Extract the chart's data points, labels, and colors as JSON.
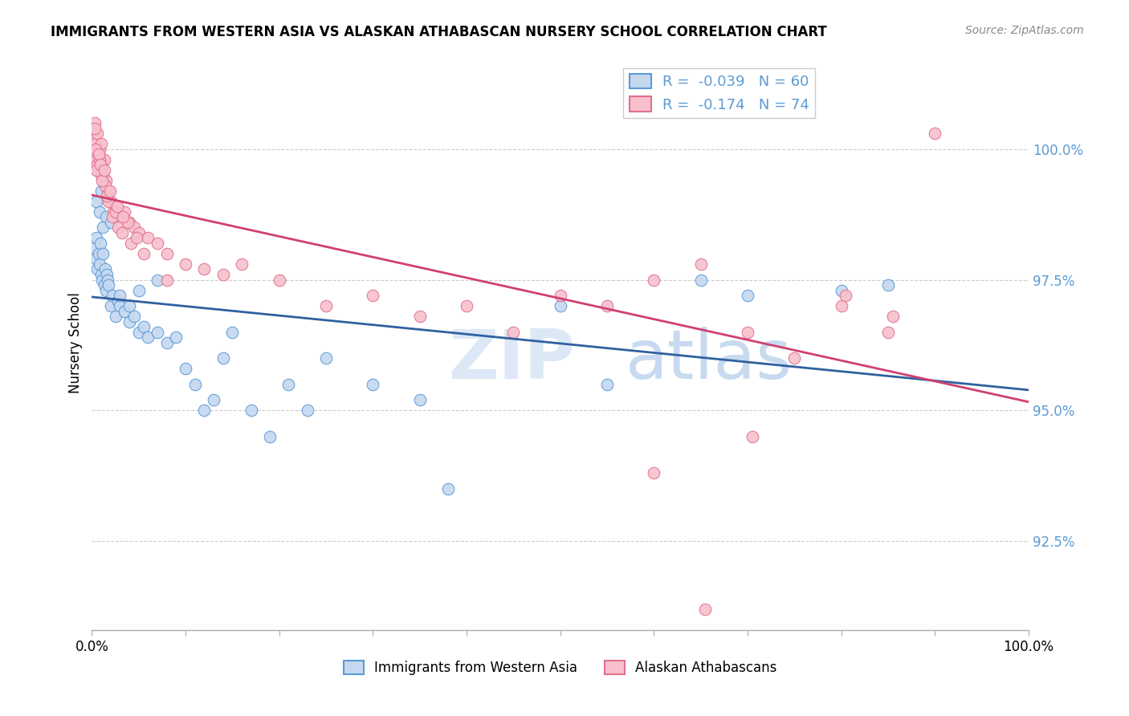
{
  "title": "IMMIGRANTS FROM WESTERN ASIA VS ALASKAN ATHABASCAN NURSERY SCHOOL CORRELATION CHART",
  "source": "Source: ZipAtlas.com",
  "ylabel": "Nursery School",
  "yticks": [
    92.5,
    95.0,
    97.5,
    100.0
  ],
  "ytick_labels": [
    "92.5%",
    "95.0%",
    "97.5%",
    "100.0%"
  ],
  "xlim": [
    0.0,
    100.0
  ],
  "ylim": [
    90.8,
    101.8
  ],
  "legend_blue_r": "-0.039",
  "legend_blue_n": "60",
  "legend_pink_r": "-0.174",
  "legend_pink_n": "74",
  "legend_label_blue": "Immigrants from Western Asia",
  "legend_label_pink": "Alaskan Athabascans",
  "blue_fill": "#c5d8f0",
  "pink_fill": "#f7c0cc",
  "blue_edge": "#5b9bd5",
  "pink_edge": "#e07090",
  "blue_line": "#3060a0",
  "pink_line": "#d04070",
  "tick_color": "#5b9bd5",
  "grid_color": "#cccccc",
  "blue_points_x": [
    0.3,
    0.4,
    0.5,
    0.6,
    0.7,
    0.8,
    0.9,
    1.0,
    1.1,
    1.2,
    1.3,
    1.4,
    1.5,
    1.6,
    1.7,
    1.8,
    2.0,
    2.2,
    2.5,
    2.8,
    3.0,
    3.5,
    4.0,
    4.5,
    5.0,
    5.5,
    6.0,
    7.0,
    8.0,
    9.0,
    10.0,
    11.0,
    12.0,
    13.0,
    14.0,
    15.0,
    17.0,
    19.0,
    21.0,
    23.0,
    25.0,
    30.0,
    35.0,
    38.0,
    50.0,
    55.0,
    65.0,
    70.0,
    80.0,
    85.0,
    0.5,
    0.8,
    1.0,
    1.2,
    1.5,
    2.0,
    3.0,
    4.0,
    5.0,
    7.0
  ],
  "blue_points_y": [
    98.1,
    97.9,
    98.3,
    97.7,
    98.0,
    97.8,
    98.2,
    97.6,
    97.5,
    98.0,
    97.4,
    97.7,
    97.3,
    97.6,
    97.5,
    97.4,
    97.0,
    97.2,
    96.8,
    97.1,
    97.0,
    96.9,
    96.7,
    96.8,
    96.5,
    96.6,
    96.4,
    96.5,
    96.3,
    96.4,
    95.8,
    95.5,
    95.0,
    95.2,
    96.0,
    96.5,
    95.0,
    94.5,
    95.5,
    95.0,
    96.0,
    95.5,
    95.2,
    93.5,
    97.0,
    95.5,
    97.5,
    97.2,
    97.3,
    97.4,
    99.0,
    98.8,
    99.2,
    98.5,
    98.7,
    98.6,
    97.2,
    97.0,
    97.3,
    97.5
  ],
  "pink_points_x": [
    0.2,
    0.3,
    0.4,
    0.5,
    0.6,
    0.7,
    0.8,
    0.9,
    1.0,
    1.1,
    1.2,
    1.3,
    1.5,
    1.7,
    2.0,
    2.3,
    2.5,
    3.0,
    3.5,
    4.0,
    4.5,
    5.0,
    6.0,
    7.0,
    8.0,
    10.0,
    12.0,
    14.0,
    16.0,
    20.0,
    25.0,
    30.0,
    35.0,
    40.0,
    45.0,
    50.0,
    55.0,
    60.0,
    65.0,
    70.0,
    75.0,
    80.0,
    85.0,
    90.0,
    0.4,
    0.6,
    0.8,
    1.0,
    1.4,
    1.8,
    2.2,
    2.8,
    3.2,
    4.2,
    5.5,
    8.0,
    60.0,
    65.5,
    70.5,
    80.5,
    85.5,
    0.5,
    0.7,
    1.1,
    1.6,
    2.5,
    3.8,
    0.3,
    0.9,
    1.3,
    1.9,
    2.7,
    3.3,
    4.8
  ],
  "pink_points_y": [
    100.2,
    100.5,
    100.1,
    99.8,
    100.3,
    99.9,
    100.0,
    99.6,
    100.1,
    99.7,
    99.5,
    99.8,
    99.4,
    99.2,
    99.0,
    98.8,
    98.9,
    98.7,
    98.8,
    98.6,
    98.5,
    98.4,
    98.3,
    98.2,
    98.0,
    97.8,
    97.7,
    97.6,
    97.8,
    97.5,
    97.0,
    97.2,
    96.8,
    97.0,
    96.5,
    97.2,
    97.0,
    97.5,
    97.8,
    96.5,
    96.0,
    97.0,
    96.5,
    100.3,
    100.0,
    99.7,
    99.8,
    99.5,
    99.3,
    99.0,
    98.7,
    98.5,
    98.4,
    98.2,
    98.0,
    97.5,
    93.8,
    91.2,
    94.5,
    97.2,
    96.8,
    99.6,
    99.9,
    99.4,
    99.1,
    98.8,
    98.6,
    100.4,
    99.7,
    99.6,
    99.2,
    98.9,
    98.7,
    98.3
  ]
}
